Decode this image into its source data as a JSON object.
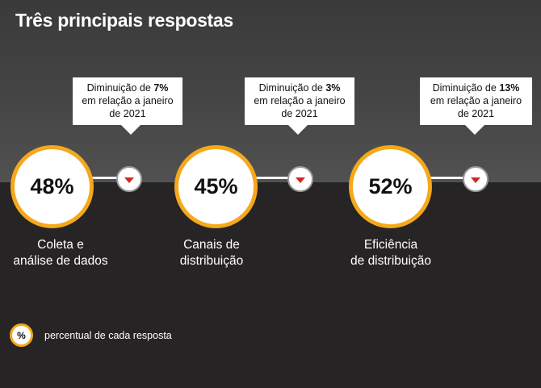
{
  "title": "Três principais respostas",
  "chart_data": {
    "type": "infographic",
    "title": "Três principais respostas",
    "items": [
      {
        "value": 48,
        "value_label": "48%",
        "label_lines": [
          "Coleta e",
          "análise de dados"
        ],
        "change_direction": "decrease",
        "change_value": 7,
        "callout": {
          "prefix": "Diminuição de",
          "bold": "7%",
          "line2": "em relação a janeiro",
          "line3": "de 2021"
        }
      },
      {
        "value": 45,
        "value_label": "45%",
        "label_lines": [
          "Canais de",
          "distribuição"
        ],
        "change_direction": "decrease",
        "change_value": 3,
        "callout": {
          "prefix": "Diminuição de",
          "bold": "3%",
          "line2": "em relação a janeiro",
          "line3": "de 2021"
        }
      },
      {
        "value": 52,
        "value_label": "52%",
        "label_lines": [
          "Eficiência",
          "de distribuição"
        ],
        "change_direction": "decrease",
        "change_value": 13,
        "callout": {
          "prefix": "Diminuição de",
          "bold": "13%",
          "line2": "em relação a janeiro",
          "line3": "de 2021"
        }
      }
    ],
    "legend": {
      "symbol": "%",
      "text": "percentual de cada resposta"
    }
  },
  "colors": {
    "accent_ring": "#f5a81a",
    "decrease_arrow": "#d0291e",
    "top_band": "#454545",
    "bottom_band": "#272425"
  }
}
